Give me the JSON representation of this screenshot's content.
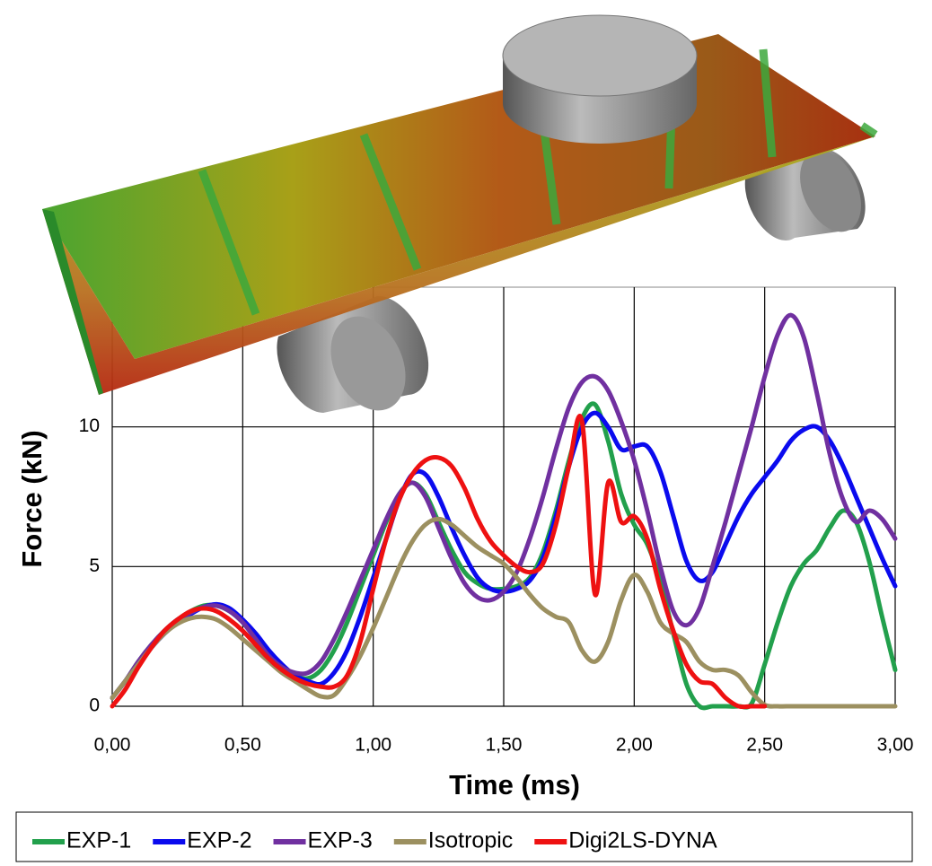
{
  "chart_data": {
    "type": "line",
    "x_label": "Time (ms)",
    "y_label": "Force (kN)",
    "x": [
      0,
      0.05,
      0.1,
      0.15,
      0.2,
      0.25,
      0.3,
      0.35,
      0.4,
      0.45,
      0.5,
      0.55,
      0.6,
      0.65,
      0.7,
      0.75,
      0.8,
      0.85,
      0.9,
      0.95,
      1.0,
      1.05,
      1.1,
      1.15,
      1.2,
      1.25,
      1.3,
      1.35,
      1.4,
      1.45,
      1.5,
      1.55,
      1.6,
      1.65,
      1.7,
      1.75,
      1.8,
      1.85,
      1.9,
      1.95,
      2.0,
      2.05,
      2.1,
      2.15,
      2.2,
      2.25,
      2.3,
      2.35,
      2.4,
      2.45,
      2.5,
      2.55,
      2.6,
      2.65,
      2.7,
      2.75,
      2.8,
      2.85,
      2.9,
      2.95,
      3.0
    ],
    "series": [
      {
        "name": "EXP-1",
        "color": "#22a04c",
        "values": [
          0.3,
          0.9,
          1.6,
          2.2,
          2.7,
          3.1,
          3.4,
          3.6,
          3.6,
          3.4,
          3.0,
          2.4,
          1.8,
          1.4,
          1.1,
          1.0,
          1.3,
          2.0,
          3.0,
          4.2,
          5.4,
          6.6,
          7.6,
          8.0,
          7.6,
          6.6,
          5.6,
          4.8,
          4.4,
          4.2,
          4.2,
          4.3,
          4.6,
          5.5,
          7.0,
          8.8,
          10.3,
          10.8,
          9.5,
          7.6,
          6.5,
          5.8,
          4.5,
          2.6,
          0.8,
          0,
          0,
          0,
          0,
          0.1,
          1.5,
          3.0,
          4.3,
          5.1,
          5.6,
          6.4,
          7.0,
          6.6,
          5.2,
          3.2,
          1.3
        ]
      },
      {
        "name": "EXP-2",
        "color": "#0a0aee",
        "values": [
          0.3,
          0.9,
          1.5,
          2.1,
          2.6,
          3.0,
          3.3,
          3.55,
          3.65,
          3.5,
          3.1,
          2.6,
          2.0,
          1.5,
          1.1,
          0.9,
          0.8,
          1.2,
          2.0,
          3.2,
          4.6,
          6.0,
          7.4,
          8.3,
          8.3,
          7.5,
          6.4,
          5.4,
          4.6,
          4.2,
          4.1,
          4.2,
          4.5,
          5.3,
          6.8,
          8.6,
          10.0,
          10.5,
          10.0,
          9.2,
          9.3,
          9.3,
          8.4,
          6.8,
          5.2,
          4.5,
          4.8,
          5.8,
          6.8,
          7.6,
          8.2,
          8.8,
          9.5,
          9.9,
          10.0,
          9.5,
          8.6,
          7.5,
          6.4,
          5.3,
          4.3
        ]
      },
      {
        "name": "EXP-3",
        "color": "#7030a0",
        "values": [
          0.3,
          0.9,
          1.6,
          2.2,
          2.7,
          3.1,
          3.35,
          3.55,
          3.6,
          3.4,
          3.0,
          2.4,
          1.8,
          1.4,
          1.2,
          1.2,
          1.6,
          2.4,
          3.4,
          4.5,
          5.6,
          6.7,
          7.6,
          8.0,
          7.5,
          6.4,
          5.3,
          4.4,
          3.9,
          3.8,
          4.1,
          4.8,
          6.0,
          7.5,
          9.2,
          10.7,
          11.6,
          11.8,
          11.3,
          10.2,
          8.8,
          7.0,
          5.0,
          3.4,
          2.9,
          3.5,
          5.0,
          6.6,
          8.3,
          10.0,
          11.8,
          13.3,
          14.0,
          13.2,
          11.2,
          9.0,
          7.4,
          6.6,
          7.0,
          6.7,
          6.0
        ]
      },
      {
        "name": "Isotropic",
        "color": "#9c9060",
        "values": [
          0.3,
          0.9,
          1.5,
          2.1,
          2.6,
          2.95,
          3.15,
          3.2,
          3.1,
          2.8,
          2.4,
          2.0,
          1.6,
          1.2,
          0.9,
          0.6,
          0.35,
          0.4,
          1.0,
          1.8,
          2.8,
          3.9,
          5.0,
          5.9,
          6.5,
          6.7,
          6.5,
          6.1,
          5.7,
          5.4,
          5.1,
          4.6,
          4.0,
          3.5,
          3.2,
          3.0,
          2.0,
          1.6,
          2.3,
          3.8,
          4.7,
          4.1,
          3.0,
          2.6,
          2.3,
          1.6,
          1.3,
          1.3,
          1.1,
          0.5,
          0.05,
          0,
          0,
          0,
          0,
          0,
          0,
          0,
          0,
          0,
          0
        ]
      },
      {
        "name": "Digi2LS-DYNA",
        "color": "#ee1111",
        "values": [
          0,
          0.6,
          1.4,
          2.1,
          2.7,
          3.1,
          3.4,
          3.5,
          3.4,
          3.1,
          2.7,
          2.2,
          1.7,
          1.3,
          1.0,
          0.8,
          0.7,
          0.7,
          1.1,
          2.3,
          4.2,
          6.0,
          7.4,
          8.3,
          8.8,
          8.9,
          8.6,
          7.8,
          6.7,
          5.9,
          5.4,
          5.0,
          4.8,
          5.1,
          6.5,
          8.6,
          10.2,
          4.0,
          8.0,
          6.6,
          6.8,
          6.0,
          4.2,
          2.7,
          1.5,
          0.9,
          0.8,
          0.3,
          0,
          0,
          0,
          null,
          null,
          null,
          null,
          null,
          null,
          null,
          null,
          null,
          null
        ]
      }
    ],
    "xlim": [
      0,
      3
    ],
    "xticks": [
      {
        "value": 0,
        "label": "0,00"
      },
      {
        "value": 0.5,
        "label": "0,50"
      },
      {
        "value": 1,
        "label": "1,00"
      },
      {
        "value": 1.5,
        "label": "1,50"
      },
      {
        "value": 2,
        "label": "2,00"
      },
      {
        "value": 2.5,
        "label": "2,50"
      },
      {
        "value": 3,
        "label": "3,00"
      }
    ],
    "ylim": [
      0,
      15
    ],
    "yticks": [
      0,
      5,
      10
    ],
    "grid": true,
    "legend": "bottom"
  }
}
